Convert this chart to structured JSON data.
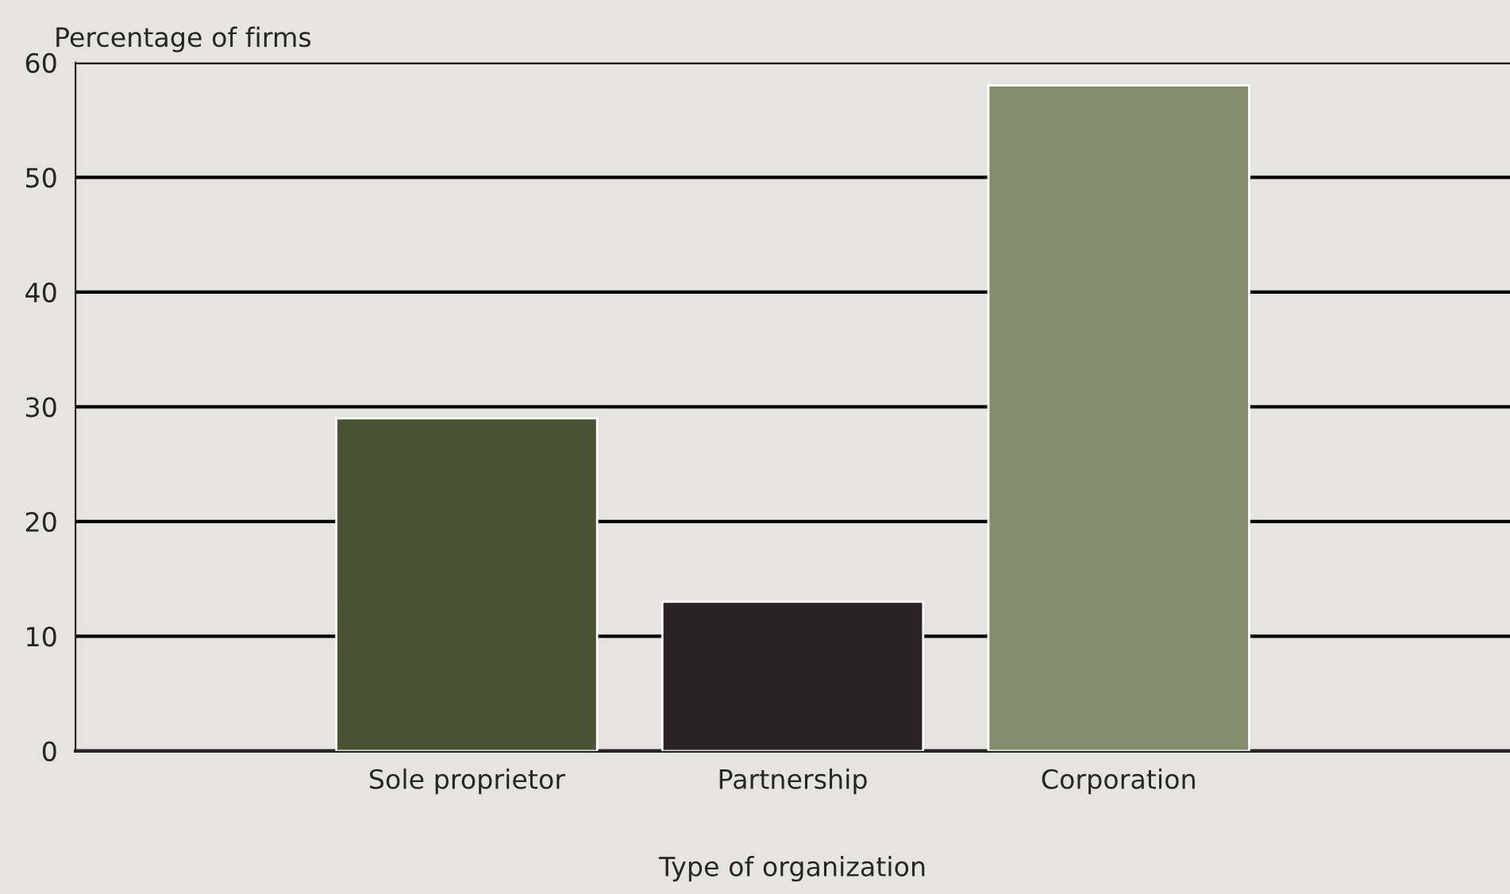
{
  "chart_data": {
    "type": "bar",
    "xlabel": "Type of organization",
    "ylabel": "Percentage of firms",
    "categories": [
      "Sole proprietor",
      "Partnership",
      "Corporation"
    ],
    "values": [
      29,
      13,
      58
    ],
    "colors": [
      "#4a5232",
      "#2a2224",
      "#848c6c"
    ],
    "ylim": [
      0,
      60
    ],
    "yticks": [
      0,
      10,
      20,
      30,
      40,
      50,
      60
    ],
    "grid": "y"
  }
}
